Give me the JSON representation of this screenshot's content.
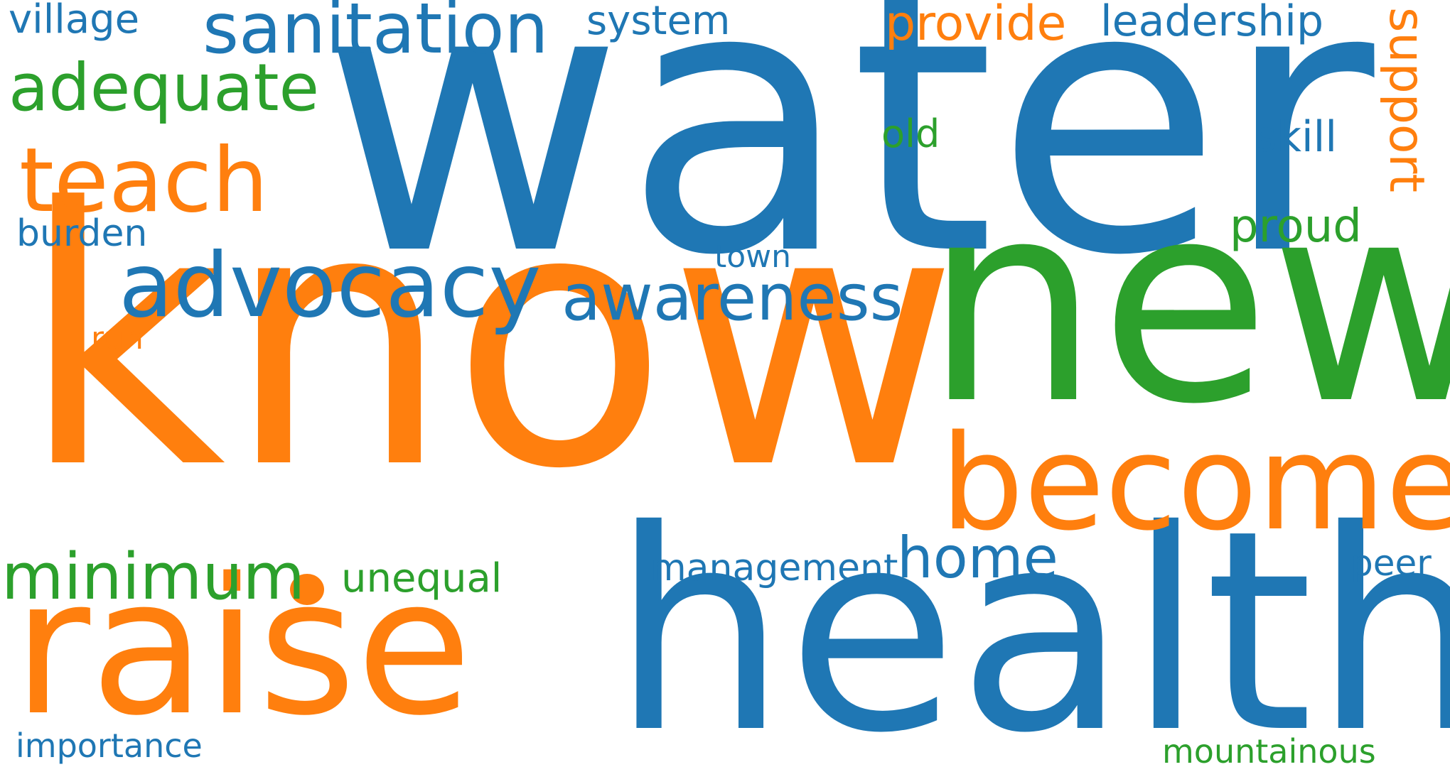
{
  "colors": {
    "blue": "#1f77b4",
    "orange": "#ff7f0e",
    "green": "#2ca02c",
    "background": "#ffffff"
  },
  "words": {
    "water": "water",
    "know": "know",
    "new": "new",
    "health": "health",
    "raise": "raise",
    "become": "become",
    "advocacy": "advocacy",
    "awareness": "awareness",
    "teach": "teach",
    "sanitation": "sanitation",
    "adequate": "adequate",
    "minimum": "minimum",
    "home": "home",
    "support": "support",
    "village": "village",
    "system": "system",
    "provide": "provide",
    "leadership": "leadership",
    "skill": "skill",
    "old": "old",
    "proud": "proud",
    "burden": "burden",
    "town": "town",
    "run": "run",
    "management": "management",
    "unequal": "unequal",
    "peer": "peer",
    "importance": "importance",
    "mountainous": "mountainous"
  }
}
